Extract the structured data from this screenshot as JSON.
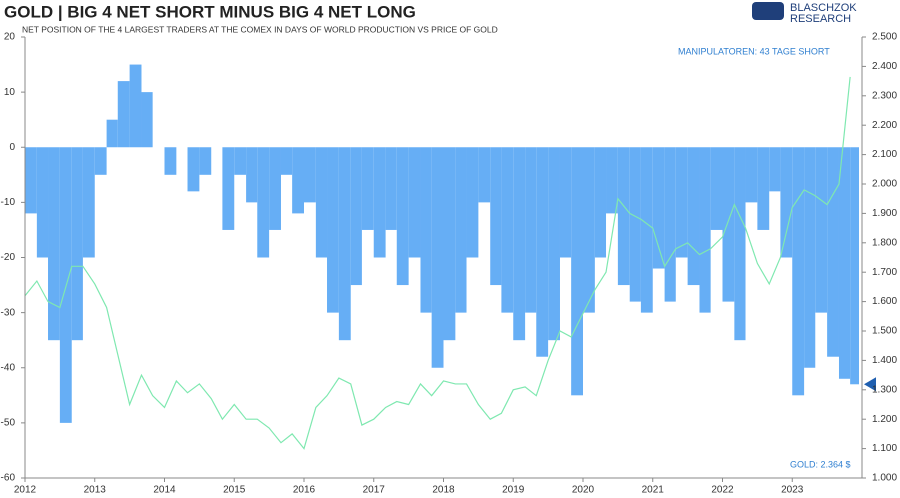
{
  "chart_data": {
    "type": "bar-line",
    "title": "GOLD | BIG 4 NET SHORT MINUS BIG 4 NET LONG",
    "subtitle": "NET POSITION OF THE 4 LARGEST TRADERS AT THE COMEX IN DAYS OF WORLD PRODUCTION VS PRICE OF GOLD",
    "brand": [
      "BLASCHZOK",
      "RESEARCH"
    ],
    "annotations": [
      "MANIPULATOREN: 43 TAGE SHORT",
      "GOLD: 2.364 $"
    ],
    "x": [
      2012.0,
      2012.17,
      2012.33,
      2012.5,
      2012.67,
      2012.83,
      2013.0,
      2013.17,
      2013.33,
      2013.5,
      2013.67,
      2013.83,
      2014.0,
      2014.17,
      2014.33,
      2014.5,
      2014.67,
      2014.83,
      2015.0,
      2015.17,
      2015.33,
      2015.5,
      2015.67,
      2015.83,
      2016.0,
      2016.17,
      2016.33,
      2016.5,
      2016.67,
      2016.83,
      2017.0,
      2017.17,
      2017.33,
      2017.5,
      2017.67,
      2017.83,
      2018.0,
      2018.17,
      2018.33,
      2018.5,
      2018.67,
      2018.83,
      2019.0,
      2019.17,
      2019.33,
      2019.5,
      2019.67,
      2019.83,
      2020.0,
      2020.17,
      2020.33,
      2020.5,
      2020.67,
      2020.83,
      2021.0,
      2021.17,
      2021.33,
      2021.5,
      2021.67,
      2021.83,
      2022.0,
      2022.17,
      2022.33,
      2022.5,
      2022.67,
      2022.83,
      2023.0,
      2023.17,
      2023.33,
      2023.5,
      2023.67,
      2023.83
    ],
    "series": [
      {
        "name": "Net position",
        "color": "#66aef5",
        "kind": "bar",
        "axis": "y",
        "values": [
          -12,
          -20,
          -35,
          -50,
          -35,
          -20,
          -5,
          5,
          12,
          15,
          10,
          0,
          -5,
          0,
          -8,
          -5,
          0,
          -15,
          -5,
          -10,
          -20,
          -15,
          -5,
          -12,
          -10,
          -20,
          -30,
          -35,
          -25,
          -15,
          -20,
          -15,
          -25,
          -20,
          -30,
          -40,
          -35,
          -30,
          -20,
          -10,
          -25,
          -30,
          -35,
          -30,
          -38,
          -35,
          -20,
          -45,
          -30,
          -20,
          -12,
          -25,
          -28,
          -30,
          -22,
          -28,
          -20,
          -25,
          -30,
          -15,
          -28,
          -35,
          -10,
          -15,
          -8,
          -20,
          -45,
          -40,
          -30,
          -38,
          -42,
          -43
        ]
      },
      {
        "name": "Gold",
        "color": "#7fe8b0",
        "kind": "line",
        "axis": "y2",
        "values": [
          1620,
          1670,
          1600,
          1580,
          1720,
          1720,
          1660,
          1580,
          1420,
          1250,
          1350,
          1280,
          1240,
          1330,
          1290,
          1320,
          1270,
          1200,
          1250,
          1200,
          1200,
          1170,
          1120,
          1150,
          1100,
          1240,
          1280,
          1340,
          1320,
          1180,
          1200,
          1240,
          1260,
          1250,
          1320,
          1280,
          1330,
          1320,
          1320,
          1250,
          1200,
          1220,
          1300,
          1310,
          1280,
          1400,
          1500,
          1480,
          1560,
          1640,
          1700,
          1950,
          1900,
          1880,
          1850,
          1720,
          1780,
          1800,
          1760,
          1780,
          1820,
          1930,
          1850,
          1730,
          1660,
          1750,
          1920,
          1980,
          1960,
          1930,
          2000,
          2364
        ]
      }
    ],
    "xlim": [
      2012,
      2024
    ],
    "xticks": [
      2012,
      2013,
      2014,
      2015,
      2016,
      2017,
      2018,
      2019,
      2020,
      2021,
      2022,
      2023
    ],
    "ylim": [
      -60,
      20
    ],
    "yticks": [
      -60,
      -50,
      -40,
      -30,
      -20,
      -10,
      0,
      10,
      20
    ],
    "y2lim": [
      1000,
      2500
    ],
    "y2ticks": [
      {
        "value": 1000,
        "label": "1.000"
      },
      {
        "value": 1100,
        "label": "1.100"
      },
      {
        "value": 1200,
        "label": "1.200"
      },
      {
        "value": 1300,
        "label": "1.300"
      },
      {
        "value": 1400,
        "label": "1.400"
      },
      {
        "value": 1500,
        "label": "1.500"
      },
      {
        "value": 1600,
        "label": "1.600"
      },
      {
        "value": 1700,
        "label": "1.700"
      },
      {
        "value": 1800,
        "label": "1.800"
      },
      {
        "value": 1900,
        "label": "1.900"
      },
      {
        "value": 2000,
        "label": "2.000"
      },
      {
        "value": 2100,
        "label": "2.100"
      },
      {
        "value": 2200,
        "label": "2.200"
      },
      {
        "value": 2300,
        "label": "2.300"
      },
      {
        "value": 2400,
        "label": "2.400"
      },
      {
        "value": 2500,
        "label": "2.500"
      }
    ]
  }
}
